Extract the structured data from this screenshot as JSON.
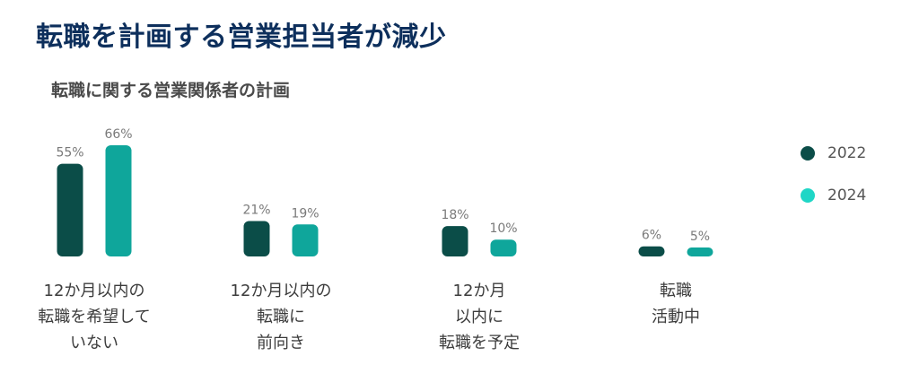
{
  "title": "転職を計画する営業担当者が減少",
  "subtitle": "転職に関する営業関係者の計画",
  "chart_data": {
    "type": "bar",
    "categories": [
      "12か月以内の\n転職を希望して\nいない",
      "12か月以内の\n転職に\n前向き",
      "12か月\n以内に\n転職を予定",
      "転職\n活動中"
    ],
    "series": [
      {
        "name": "2022",
        "values": [
          55,
          21,
          18,
          6
        ],
        "labels": [
          "55%",
          "21%",
          "18%",
          "6%"
        ],
        "color": "#0b4d48"
      },
      {
        "name": "2024",
        "values": [
          66,
          19,
          10,
          5
        ],
        "labels": [
          "66%",
          "19%",
          "10%",
          "5%"
        ],
        "color": "#0fa69b"
      }
    ],
    "legend_colors": [
      "#0b4d48",
      "#1fd6c6"
    ],
    "ylim": [
      0,
      66
    ],
    "grid": false,
    "legend": "right"
  }
}
